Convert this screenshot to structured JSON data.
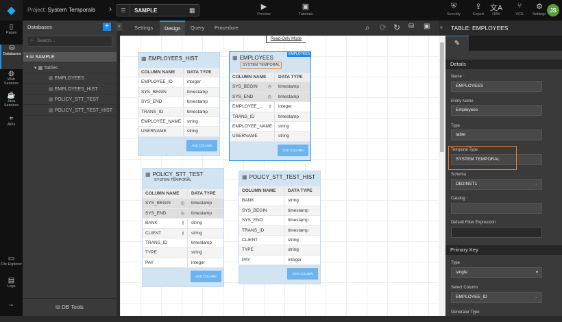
{
  "topbar": {
    "project_label": "Project:",
    "project_name": "System Temporals",
    "database": "SAMPLE",
    "buttons": [
      {
        "label": "Preview",
        "icon": "play-icon"
      },
      {
        "label": "Tutorials",
        "icon": "youtube-icon"
      },
      {
        "label": "Security",
        "icon": "shield-icon"
      },
      {
        "label": "Export",
        "icon": "export-icon"
      },
      {
        "label": "I18N",
        "icon": "translate-icon"
      },
      {
        "label": "VCS",
        "icon": "branch-icon"
      },
      {
        "label": "Settings",
        "icon": "gear-icon"
      }
    ],
    "avatar": "JS"
  },
  "rail": [
    {
      "label": "Pages",
      "icon": "page-icon"
    },
    {
      "label": "Databases",
      "icon": "database-icon",
      "active": true
    },
    {
      "label": "Web Services",
      "icon": "globe-icon"
    },
    {
      "label": "Java Services",
      "icon": "coffee-icon"
    },
    {
      "label": "APIs",
      "icon": "api-icon"
    },
    {
      "label": "File Explorer",
      "icon": "folder-icon"
    },
    {
      "label": "Logs",
      "icon": "log-icon"
    },
    {
      "label": "•••",
      "icon": "more-icon"
    }
  ],
  "dbpanel": {
    "title": "Databases",
    "search_placeholder": "Search...",
    "tree": {
      "db": "SAMPLE",
      "group": "Tables",
      "tables": [
        "EMPLOYEES",
        "EMPLOYEES_HIST",
        "POLICY_STT_TEST",
        "POLICY_STT_TEST_HIST"
      ]
    },
    "tools": "DB Tools"
  },
  "tabs": [
    {
      "label": "Settings"
    },
    {
      "label": "Design",
      "active": true
    },
    {
      "label": "Query"
    },
    {
      "label": "Procedure"
    }
  ],
  "read_only": "Read-Only Mode",
  "canvas": {
    "col_header": "COLUMN NAME",
    "type_header": "DATA TYPE",
    "add_column": "ADD COLUMN",
    "tables": [
      {
        "name": "EMPLOYEES_HIST",
        "rows": [
          [
            "EMPLOYEE_ID",
            "integer",
            ""
          ],
          [
            "SYS_BEGIN",
            "timestamp",
            ""
          ],
          [
            "SYS_END",
            "timestamp",
            ""
          ],
          [
            "TRANS_ID",
            "timestamp",
            ""
          ],
          [
            "EMPLOYEE_NAME",
            "string",
            ""
          ],
          [
            "USERNAME",
            "string",
            ""
          ]
        ]
      },
      {
        "name": "EMPLOYEES",
        "subtitle": "SYSTEM TEMPORAL",
        "badge": "EMPLOYEES",
        "selected": true,
        "rows": [
          [
            "SYS_BEGIN",
            "timestamp",
            "clock"
          ],
          [
            "SYS_END",
            "timestamp",
            "clock"
          ],
          [
            "EMPLOYEE_...",
            "integer",
            "key"
          ],
          [
            "TRANS_ID",
            "timestamp",
            ""
          ],
          [
            "EMPLOYEE_NAME",
            "string",
            ""
          ],
          [
            "USERNAME",
            "string",
            ""
          ]
        ]
      },
      {
        "name": "POLICY_STT_TEST",
        "subtitle": "SYSTEM TEMPORAL",
        "rows": [
          [
            "SYS_BEGIN",
            "timestamp",
            "clock"
          ],
          [
            "SYS_END",
            "timestamp",
            "clock"
          ],
          [
            "BANK",
            "string",
            "key"
          ],
          [
            "CLIENT",
            "string",
            "key"
          ],
          [
            "TRANS_ID",
            "timestamp",
            ""
          ],
          [
            "TYPE",
            "string",
            ""
          ],
          [
            "PAY",
            "integer",
            ""
          ]
        ]
      },
      {
        "name": "POLICY_STT_TEST_HIST",
        "rows": [
          [
            "BANK",
            "string",
            ""
          ],
          [
            "SYS_BEGIN",
            "timestamp",
            ""
          ],
          [
            "SYS_END",
            "timestamp",
            ""
          ],
          [
            "TRANS_ID",
            "timestamp",
            ""
          ],
          [
            "CLIENT",
            "string",
            ""
          ],
          [
            "TYPE",
            "string",
            ""
          ],
          [
            "PAY",
            "integer",
            ""
          ]
        ]
      }
    ]
  },
  "rpanel": {
    "title": "TABLE: EMPLOYEES",
    "details": "Details",
    "name_label": "Name",
    "name": "EMPLOYEES",
    "entity_label": "Entity Name",
    "entity": "Employees",
    "type_label": "Type",
    "type": "table",
    "temporal_label": "Temporal Type",
    "temporal": "SYSTEM TEMPORAL",
    "schema_label": "Schema",
    "schema": "DB2INST1",
    "catalog_label": "Catalog",
    "catalog": "",
    "filter_label": "Default Filter Expression",
    "filter": "",
    "pk": "Primary Key",
    "pk_type_label": "Type",
    "pk_type": "single",
    "select_col_label": "Select Column",
    "select_col": "EMPLOYEE_ID",
    "gen_label": "Generator Type"
  },
  "colors": {
    "accent": "#1e88e5",
    "highlight": "#f07b1d"
  }
}
